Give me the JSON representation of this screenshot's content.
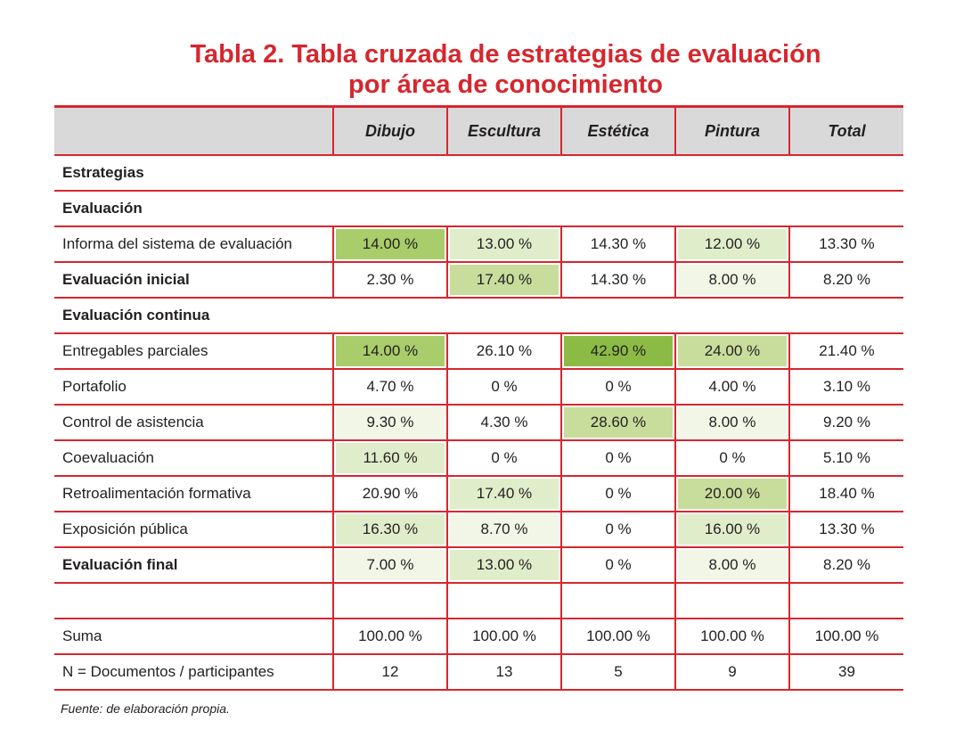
{
  "title": {
    "line1": "Tabla 2. Tabla cruzada de estrategias de evaluación",
    "line2": "por área de conocimiento"
  },
  "colors": {
    "rule": "#d6272e",
    "title": "#d6272e",
    "header_bg": "#d9d9da",
    "highlight_scale": [
      "transparent",
      "#f1f6e6",
      "#e0edcb",
      "#c8dd9c",
      "#a9cd6a",
      "#8bbb45"
    ]
  },
  "table": {
    "columns": [
      "Dibujo",
      "Escultura",
      "Estética",
      "Pintura",
      "Total"
    ],
    "rows": [
      {
        "type": "section",
        "label": "Estrategias"
      },
      {
        "type": "section",
        "label": "Evaluación"
      },
      {
        "type": "data",
        "bold": false,
        "label": "Informa del sistema de evaluación",
        "cells": [
          {
            "v": "14.00 %",
            "h": 4
          },
          {
            "v": "13.00 %",
            "h": 2
          },
          {
            "v": "14.30 %",
            "h": 0
          },
          {
            "v": "12.00 %",
            "h": 2
          },
          {
            "v": "13.30 %",
            "h": 0
          }
        ]
      },
      {
        "type": "data",
        "bold": true,
        "label": "Evaluación inicial",
        "cells": [
          {
            "v": "2.30 %",
            "h": 0
          },
          {
            "v": "17.40 %",
            "h": 3
          },
          {
            "v": "14.30 %",
            "h": 0
          },
          {
            "v": "8.00 %",
            "h": 1
          },
          {
            "v": "8.20 %",
            "h": 0
          }
        ]
      },
      {
        "type": "section",
        "label": "Evaluación continua"
      },
      {
        "type": "data",
        "bold": false,
        "label": "Entregables parciales",
        "cells": [
          {
            "v": "14.00 %",
            "h": 4
          },
          {
            "v": "26.10 %",
            "h": 0
          },
          {
            "v": "42.90 %",
            "h": 5
          },
          {
            "v": "24.00 %",
            "h": 3
          },
          {
            "v": "21.40 %",
            "h": 0
          }
        ]
      },
      {
        "type": "data",
        "bold": false,
        "label": "Portafolio",
        "cells": [
          {
            "v": "4.70 %",
            "h": 0
          },
          {
            "v": "0 %",
            "h": 0
          },
          {
            "v": "0 %",
            "h": 0
          },
          {
            "v": "4.00 %",
            "h": 0
          },
          {
            "v": "3.10 %",
            "h": 0
          }
        ]
      },
      {
        "type": "data",
        "bold": false,
        "label": "Control de asistencia",
        "cells": [
          {
            "v": "9.30 %",
            "h": 1
          },
          {
            "v": "4.30 %",
            "h": 0
          },
          {
            "v": "28.60 %",
            "h": 3
          },
          {
            "v": "8.00 %",
            "h": 1
          },
          {
            "v": "9.20 %",
            "h": 0
          }
        ]
      },
      {
        "type": "data",
        "bold": false,
        "label": "Coevaluación",
        "cells": [
          {
            "v": "11.60 %",
            "h": 2
          },
          {
            "v": "0 %",
            "h": 0
          },
          {
            "v": "0 %",
            "h": 0
          },
          {
            "v": "0 %",
            "h": 0
          },
          {
            "v": "5.10 %",
            "h": 0
          }
        ]
      },
      {
        "type": "data",
        "bold": false,
        "label": "Retroalimentación formativa",
        "cells": [
          {
            "v": "20.90 %",
            "h": 0
          },
          {
            "v": "17.40 %",
            "h": 2
          },
          {
            "v": "0 %",
            "h": 0
          },
          {
            "v": "20.00 %",
            "h": 3
          },
          {
            "v": "18.40 %",
            "h": 0
          }
        ]
      },
      {
        "type": "data",
        "bold": false,
        "label": "Exposición pública",
        "cells": [
          {
            "v": "16.30 %",
            "h": 2
          },
          {
            "v": "8.70 %",
            "h": 1
          },
          {
            "v": "0 %",
            "h": 0
          },
          {
            "v": "16.00 %",
            "h": 2
          },
          {
            "v": "13.30 %",
            "h": 0
          }
        ]
      },
      {
        "type": "data",
        "bold": true,
        "label": "Evaluación final",
        "cells": [
          {
            "v": "7.00 %",
            "h": 1
          },
          {
            "v": "13.00 %",
            "h": 2
          },
          {
            "v": "0 %",
            "h": 0
          },
          {
            "v": "8.00 %",
            "h": 1
          },
          {
            "v": "8.20 %",
            "h": 0
          }
        ]
      },
      {
        "type": "blank"
      },
      {
        "type": "data",
        "bold": false,
        "label": "Suma",
        "cells": [
          {
            "v": "100.00 %",
            "h": 0
          },
          {
            "v": "100.00 %",
            "h": 0
          },
          {
            "v": "100.00 %",
            "h": 0
          },
          {
            "v": "100.00 %",
            "h": 0
          },
          {
            "v": "100.00 %",
            "h": 0
          }
        ]
      },
      {
        "type": "data",
        "bold": false,
        "label": "N = Documentos / participantes",
        "cells": [
          {
            "v": "12",
            "h": 0
          },
          {
            "v": "13",
            "h": 0
          },
          {
            "v": "5",
            "h": 0
          },
          {
            "v": "9",
            "h": 0
          },
          {
            "v": "39",
            "h": 0
          }
        ]
      }
    ]
  },
  "source": "Fuente: de elaboración propia."
}
